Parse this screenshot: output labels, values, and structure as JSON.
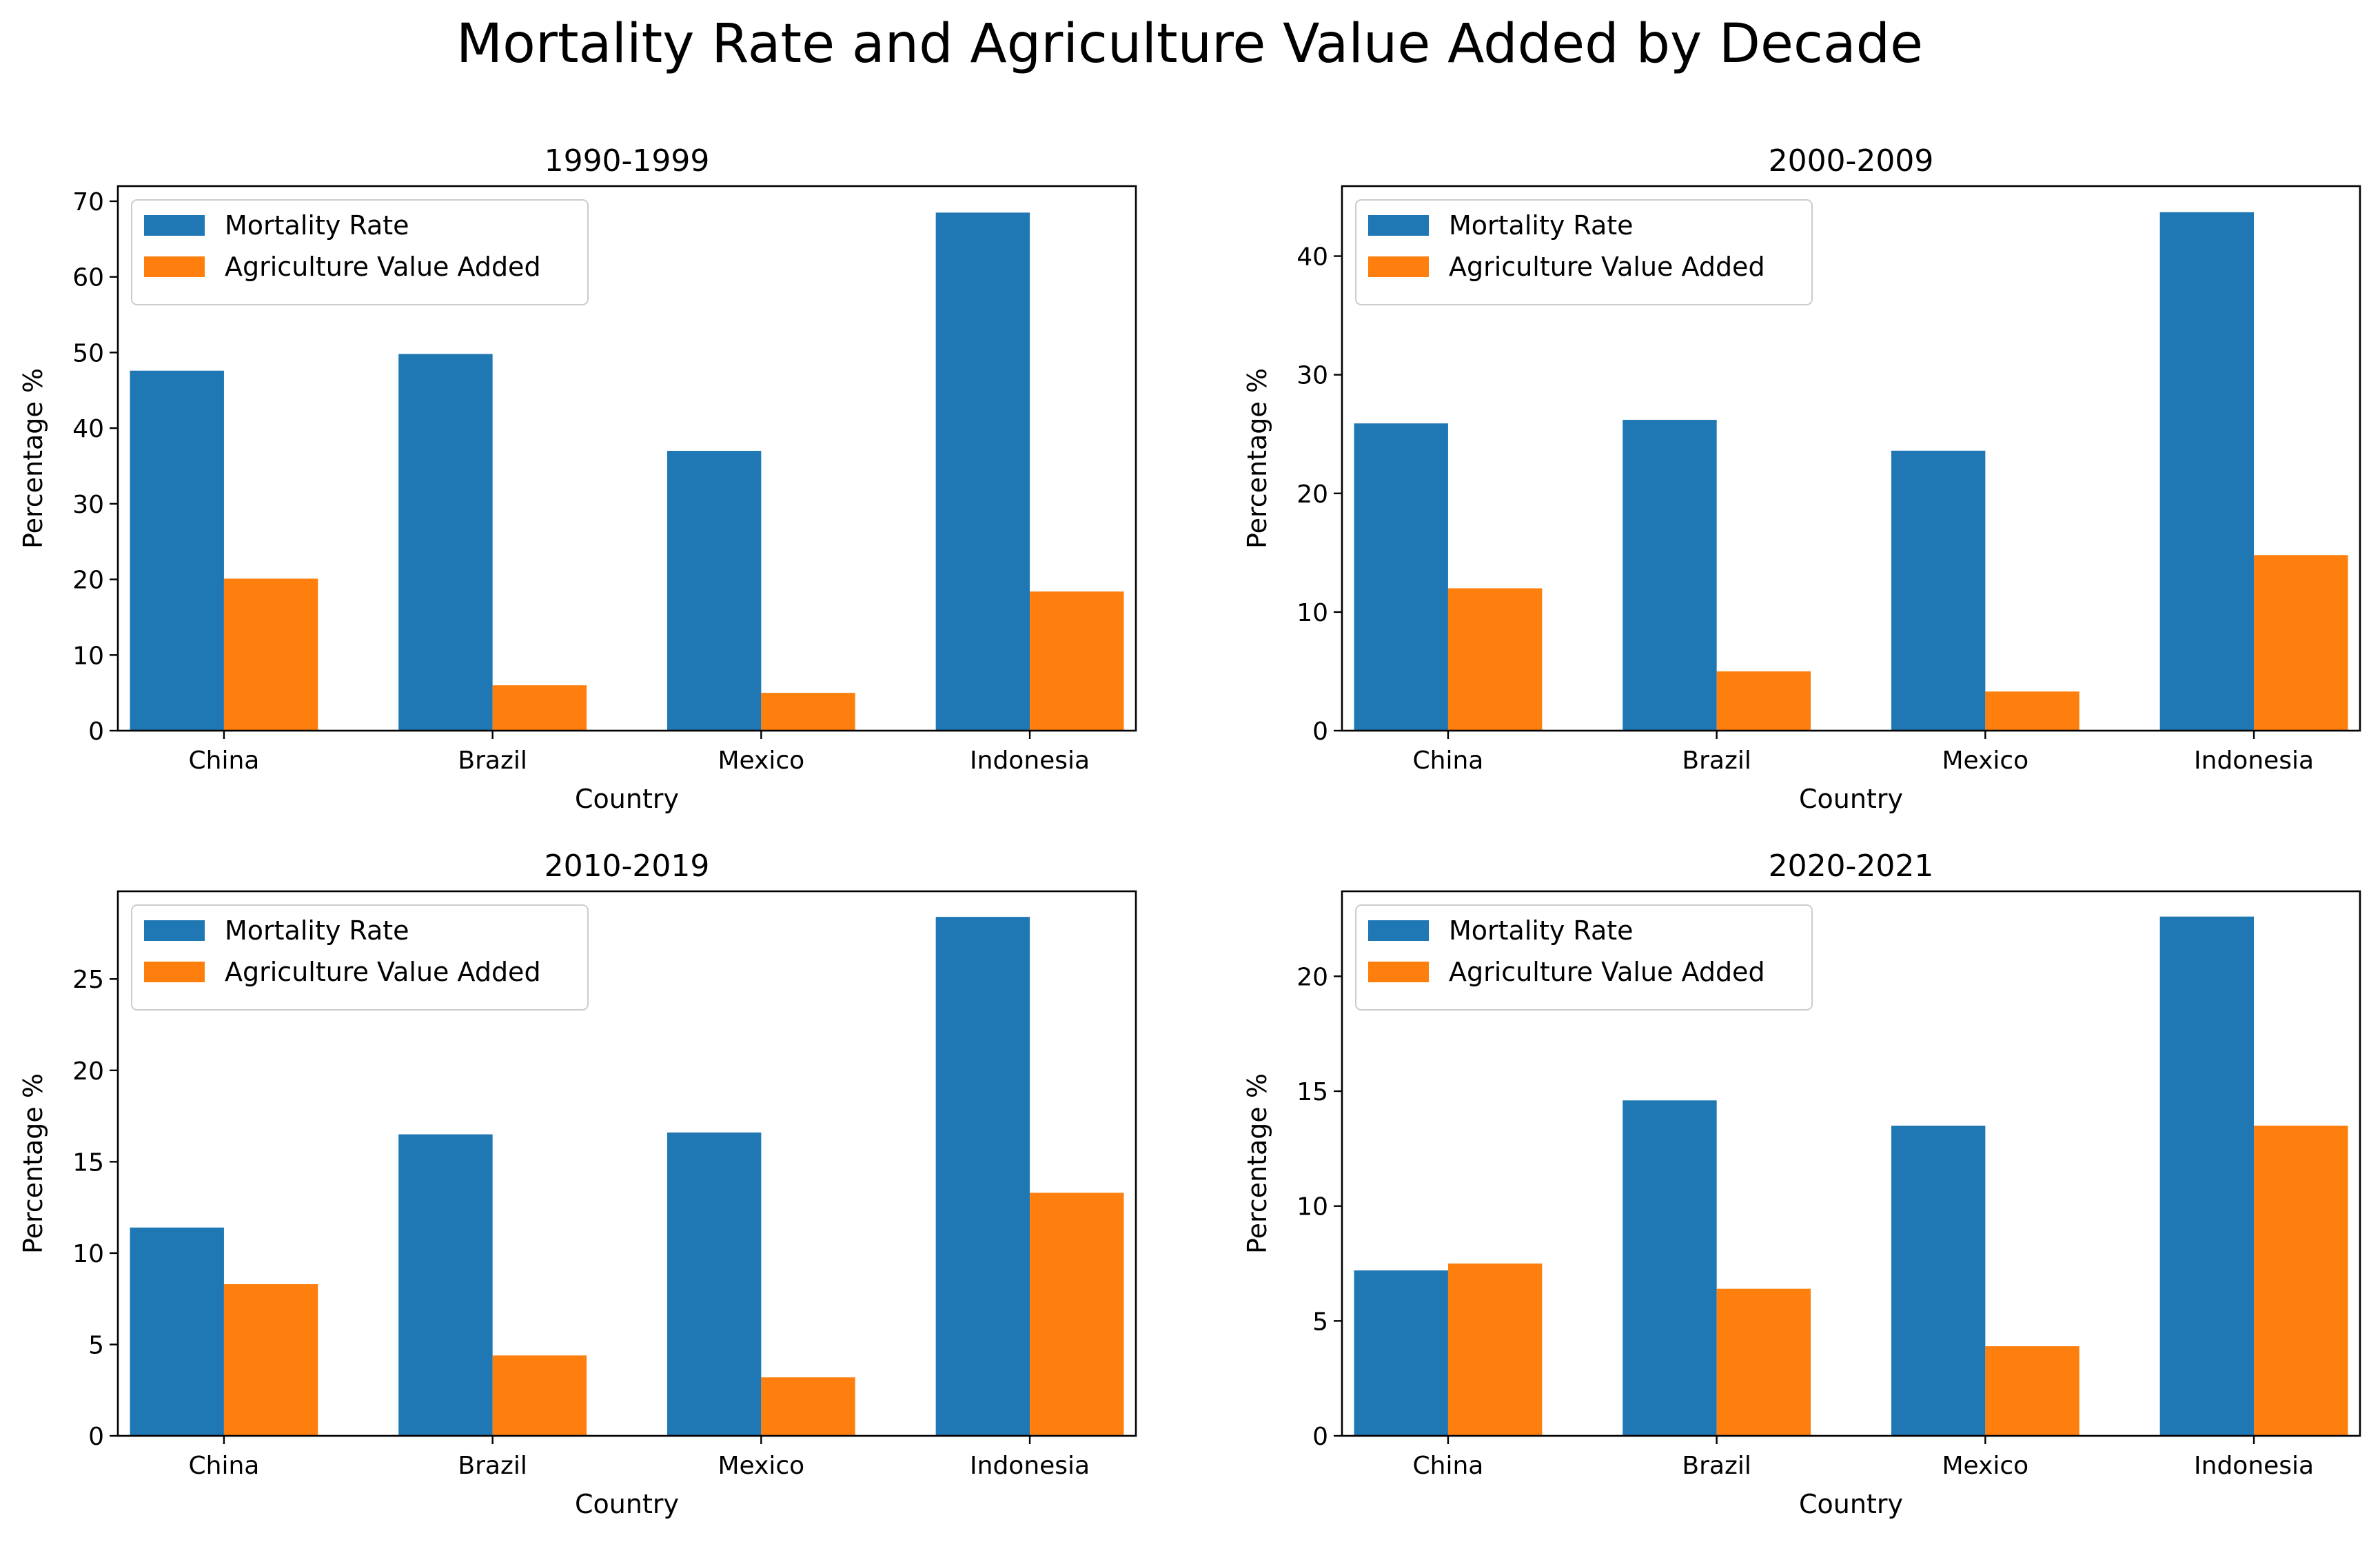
{
  "chart_data": {
    "suptitle": "Mortality Rate and Agriculture Value Added by Decade",
    "colors": {
      "mortality": "#1f77b4",
      "agriculture": "#ff7f0e"
    },
    "panels": [
      {
        "type": "bar",
        "title": "1990-1999",
        "xlabel": "Country",
        "ylabel": "Percentage %",
        "categories": [
          "China",
          "Brazil",
          "Mexico",
          "Indonesia"
        ],
        "series": [
          {
            "name": "Mortality Rate",
            "values": [
              47.6,
              49.8,
              37.0,
              68.5
            ]
          },
          {
            "name": "Agriculture Value Added",
            "values": [
              20.1,
              6.0,
              5.0,
              18.4
            ]
          }
        ],
        "ylim": [
          0,
          72
        ],
        "yticks": [
          0,
          10,
          20,
          30,
          40,
          50,
          60,
          70
        ],
        "legend": "upper left"
      },
      {
        "type": "bar",
        "title": "2000-2009",
        "xlabel": "Country",
        "ylabel": "Percentage %",
        "categories": [
          "China",
          "Brazil",
          "Mexico",
          "Indonesia"
        ],
        "series": [
          {
            "name": "Mortality Rate",
            "values": [
              25.9,
              26.2,
              23.6,
              43.7
            ]
          },
          {
            "name": "Agriculture Value Added",
            "values": [
              12.0,
              5.0,
              3.3,
              14.8
            ]
          }
        ],
        "ylim": [
          0,
          45.9
        ],
        "yticks": [
          0,
          10,
          20,
          30,
          40
        ],
        "legend": "upper left"
      },
      {
        "type": "bar",
        "title": "2010-2019",
        "xlabel": "Country",
        "ylabel": "Percentage %",
        "categories": [
          "China",
          "Brazil",
          "Mexico",
          "Indonesia"
        ],
        "series": [
          {
            "name": "Mortality Rate",
            "values": [
              11.4,
              16.5,
              16.6,
              28.4
            ]
          },
          {
            "name": "Agriculture Value Added",
            "values": [
              8.3,
              4.4,
              3.2,
              13.3
            ]
          }
        ],
        "ylim": [
          0,
          29.8
        ],
        "yticks": [
          0,
          5,
          10,
          15,
          20,
          25
        ],
        "legend": "upper left"
      },
      {
        "type": "bar",
        "title": "2020-2021",
        "xlabel": "Country",
        "ylabel": "Percentage %",
        "categories": [
          "China",
          "Brazil",
          "Mexico",
          "Indonesia"
        ],
        "series": [
          {
            "name": "Mortality Rate",
            "values": [
              7.2,
              14.6,
              13.5,
              22.6
            ]
          },
          {
            "name": "Agriculture Value Added",
            "values": [
              7.5,
              6.4,
              3.9,
              13.5
            ]
          }
        ],
        "ylim": [
          0,
          23.7
        ],
        "yticks": [
          0,
          5,
          10,
          15,
          20
        ],
        "legend": "upper left"
      }
    ]
  }
}
